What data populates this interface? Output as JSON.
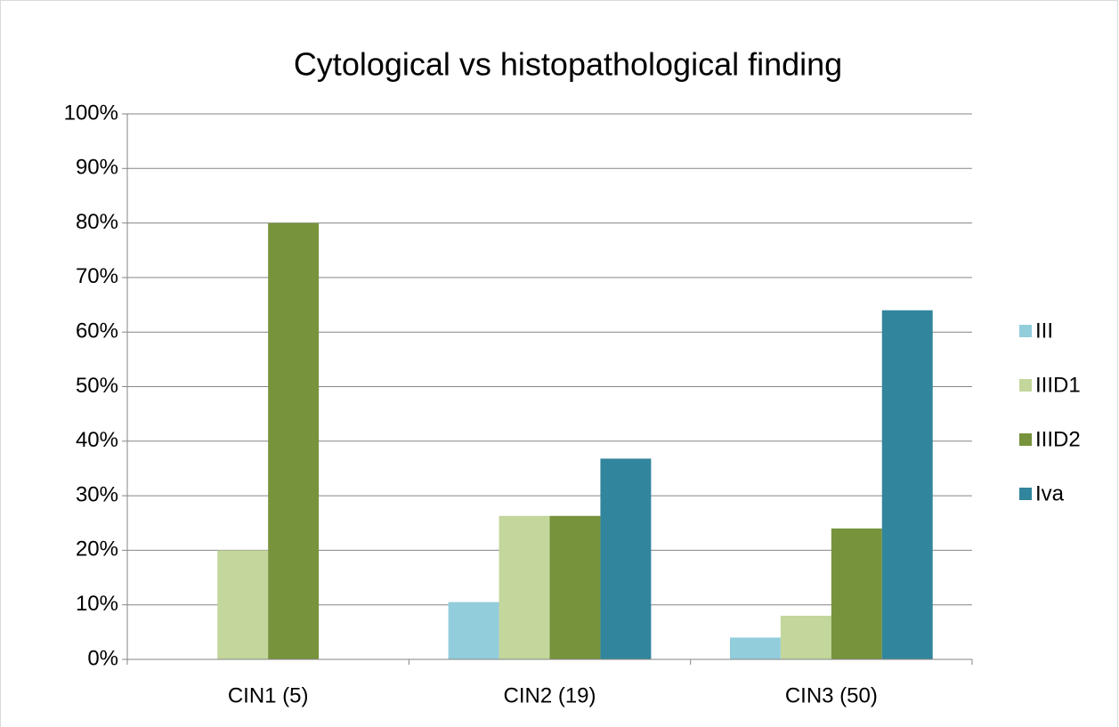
{
  "chart_data": {
    "type": "bar",
    "title": "Cytological vs histopathological finding",
    "categories": [
      "CIN1 (5)",
      "CIN2 (19)",
      "CIN3 (50)"
    ],
    "series": [
      {
        "name": "III",
        "color": "#92cddc",
        "values": [
          0,
          10.5,
          4
        ]
      },
      {
        "name": "IIID1",
        "color": "#c3d69b",
        "values": [
          20,
          26.3,
          8
        ]
      },
      {
        "name": "IIID2",
        "color": "#77933c",
        "values": [
          80,
          26.3,
          24
        ]
      },
      {
        "name": "Iva",
        "color": "#31859c",
        "values": [
          0,
          36.8,
          64
        ]
      }
    ],
    "ylim": [
      0,
      100
    ],
    "yticks": [
      {
        "value": 0,
        "label": "0%"
      },
      {
        "value": 10,
        "label": "10%"
      },
      {
        "value": 20,
        "label": "20%"
      },
      {
        "value": 30,
        "label": "30%"
      },
      {
        "value": 40,
        "label": "40%"
      },
      {
        "value": 50,
        "label": "50%"
      },
      {
        "value": 60,
        "label": "60%"
      },
      {
        "value": 70,
        "label": "70%"
      },
      {
        "value": 80,
        "label": "80%"
      },
      {
        "value": 90,
        "label": "90%"
      },
      {
        "value": 100,
        "label": "100%"
      }
    ],
    "grid": true,
    "legend": "right"
  }
}
